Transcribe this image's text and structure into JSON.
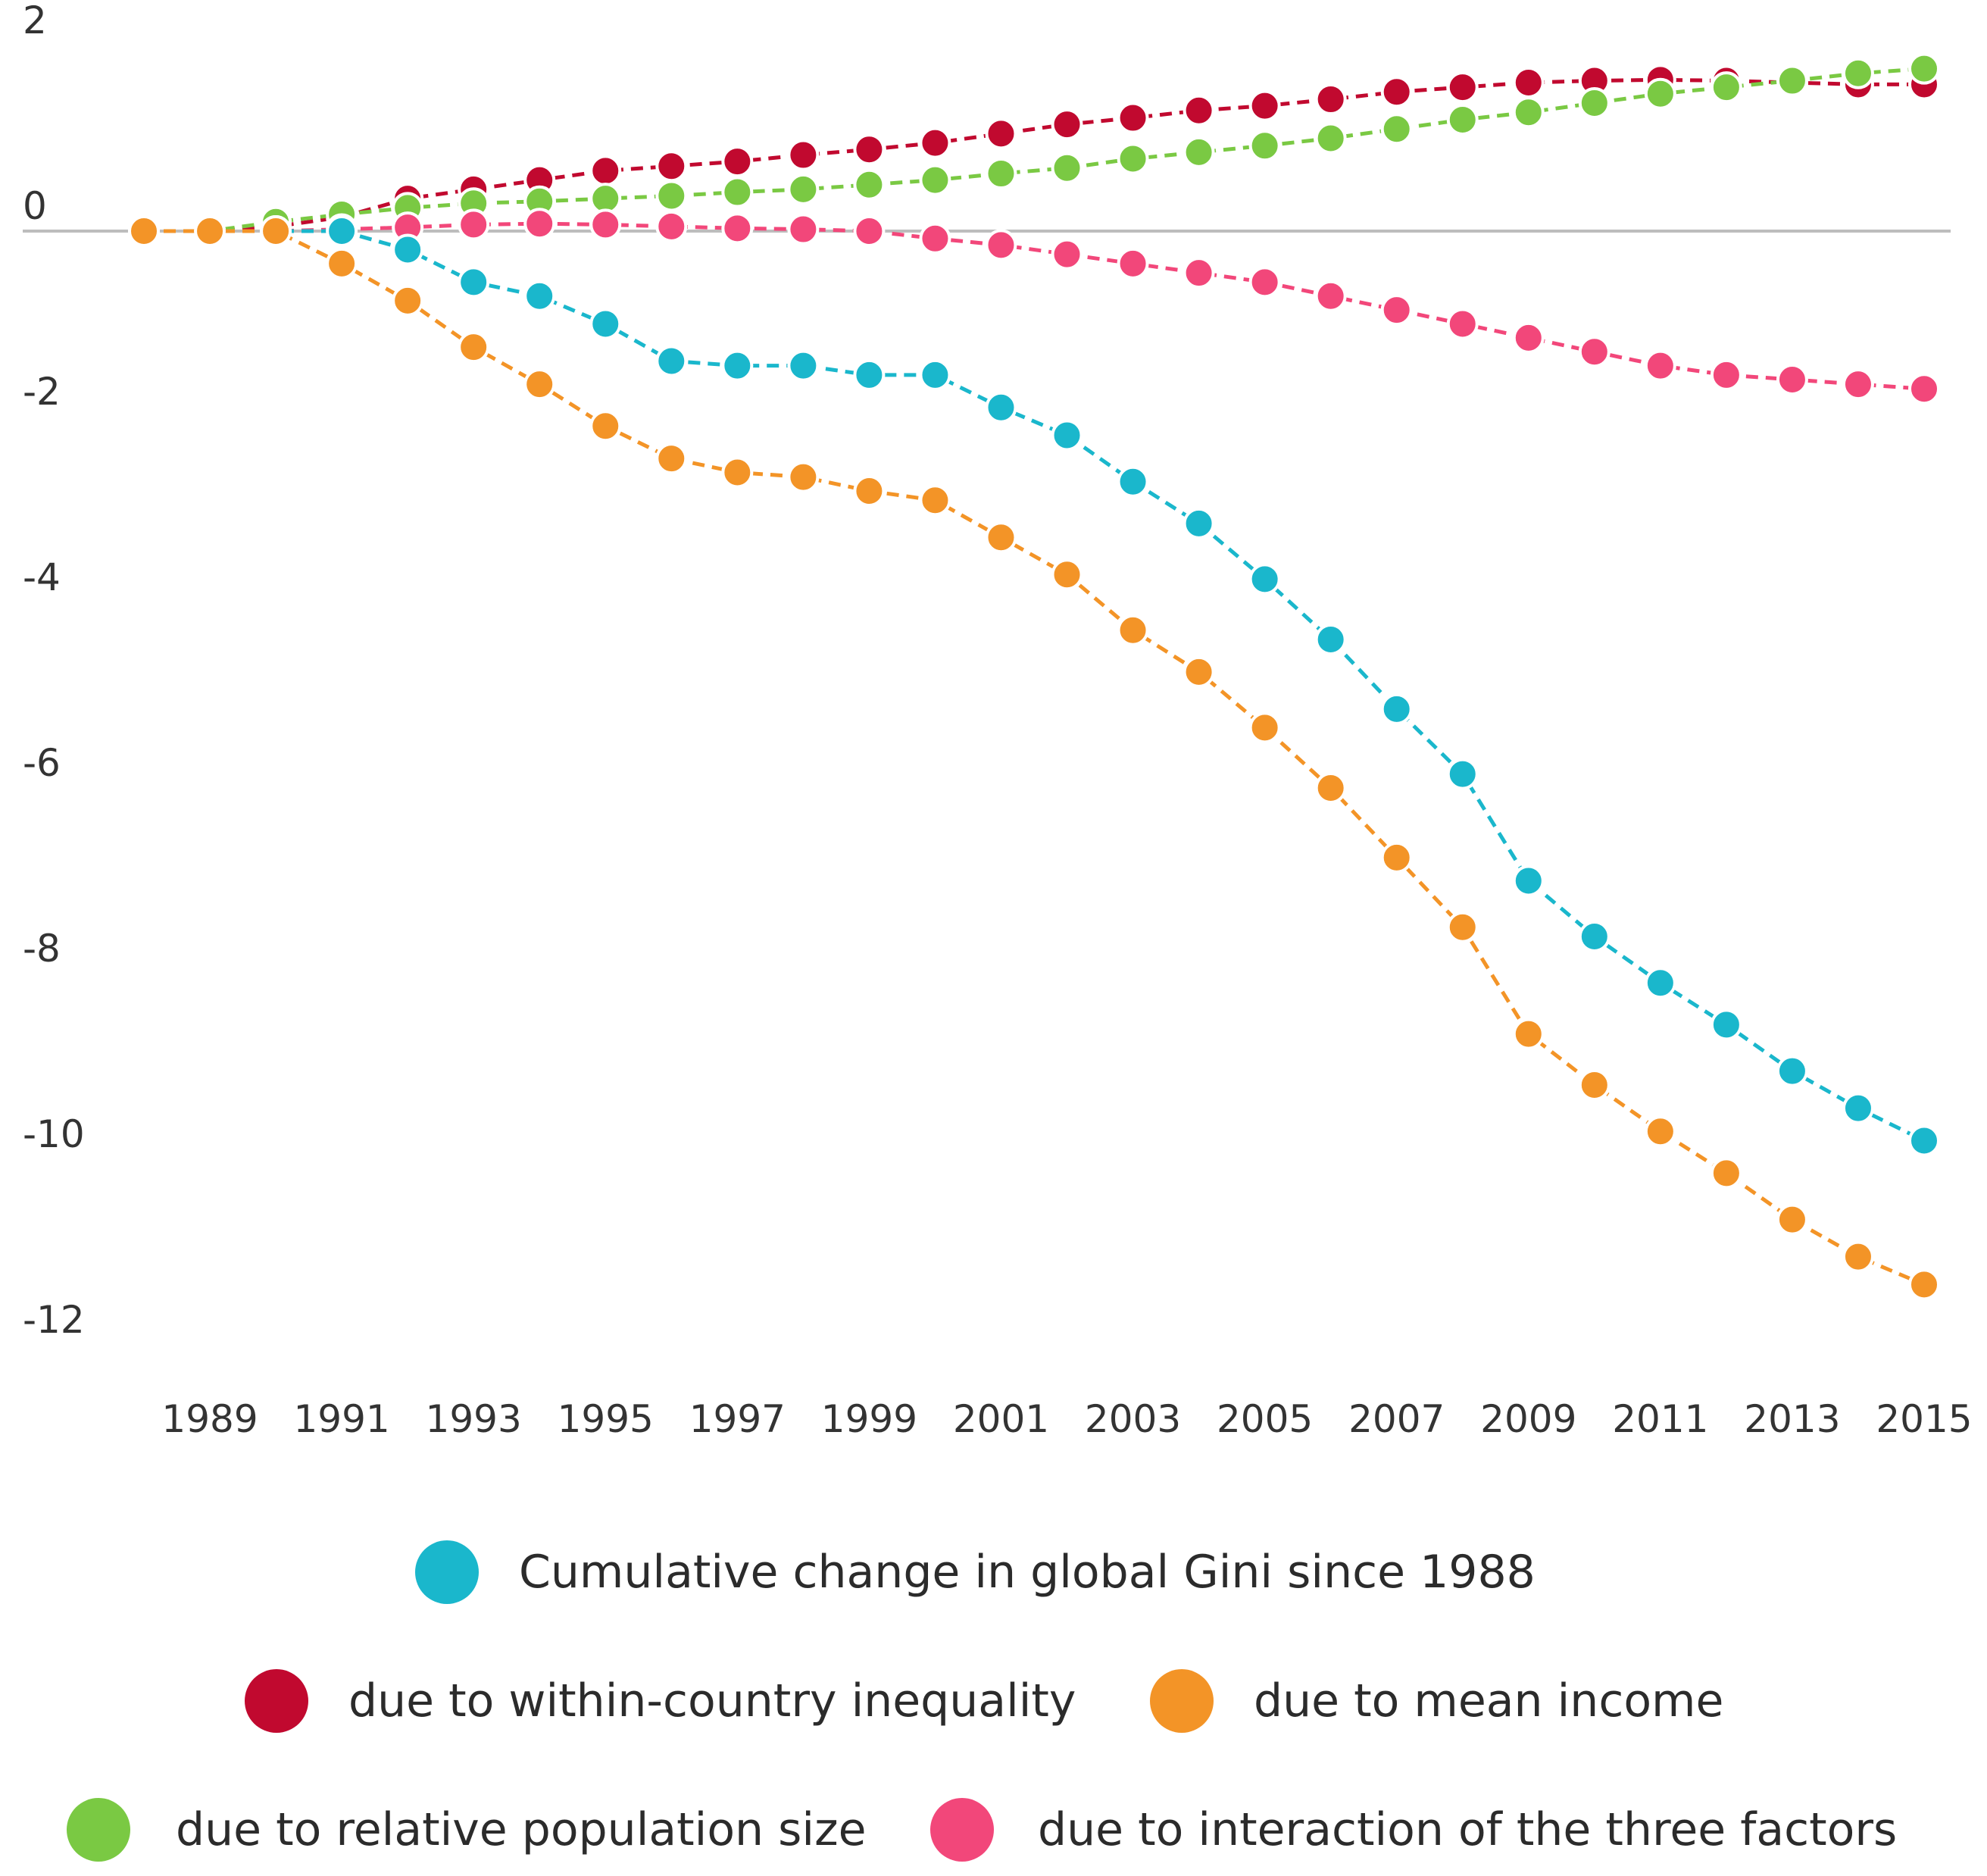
{
  "chart_data": {
    "type": "line",
    "title": "",
    "xlabel": "",
    "ylabel": "",
    "xlim": [
      1988,
      2015
    ],
    "ylim": [
      -12,
      2
    ],
    "yticks": [
      2,
      0,
      -2,
      -4,
      -6,
      -8,
      -10,
      -12
    ],
    "xticks": [
      1989,
      1991,
      1993,
      1995,
      1997,
      1999,
      2001,
      2003,
      2005,
      2007,
      2009,
      2011,
      2013,
      2015
    ],
    "x": [
      1988,
      1989,
      1990,
      1991,
      1992,
      1993,
      1994,
      1995,
      1996,
      1997,
      1998,
      1999,
      2000,
      2001,
      2002,
      2003,
      2004,
      2005,
      2006,
      2007,
      2008,
      2009,
      2010,
      2011,
      2012,
      2013,
      2014,
      2015
    ],
    "grid": false,
    "zero_line": true,
    "legend_position": "bottom",
    "series": [
      {
        "name": "due to within-country inequality",
        "color": "#c1092f",
        "values": [
          0,
          0,
          0.05,
          0.15,
          0.35,
          0.45,
          0.55,
          0.65,
          0.7,
          0.75,
          0.82,
          0.88,
          0.95,
          1.05,
          1.15,
          1.22,
          1.3,
          1.35,
          1.42,
          1.5,
          1.55,
          1.6,
          1.62,
          1.63,
          1.62,
          1.6,
          1.58,
          1.58
        ]
      },
      {
        "name": "due to relative population size",
        "color": "#7ac943",
        "values": [
          0,
          0,
          0.1,
          0.18,
          0.25,
          0.3,
          0.32,
          0.35,
          0.38,
          0.42,
          0.45,
          0.5,
          0.55,
          0.62,
          0.68,
          0.78,
          0.85,
          0.92,
          1.0,
          1.1,
          1.2,
          1.28,
          1.38,
          1.48,
          1.55,
          1.62,
          1.7,
          1.75
        ]
      },
      {
        "name": "due to interaction of the three factors",
        "color": "#f2477a",
        "values": [
          0,
          0,
          0,
          0.02,
          0.04,
          0.07,
          0.08,
          0.07,
          0.05,
          0.03,
          0.02,
          0,
          -0.08,
          -0.15,
          -0.25,
          -0.35,
          -0.45,
          -0.55,
          -0.7,
          -0.85,
          -1.0,
          -1.15,
          -1.3,
          -1.45,
          -1.55,
          -1.6,
          -1.65,
          -1.7
        ]
      },
      {
        "name": "Cumulative change in global Gini since 1988",
        "color": "#1ab7cc",
        "values": [
          0,
          0,
          0,
          0,
          -0.2,
          -0.55,
          -0.7,
          -1.0,
          -1.4,
          -1.45,
          -1.45,
          -1.55,
          -1.55,
          -1.9,
          -2.2,
          -2.7,
          -3.15,
          -3.75,
          -4.4,
          -5.15,
          -5.85,
          -7.0,
          -7.6,
          -8.1,
          -8.55,
          -9.05,
          -9.45,
          -9.8
        ]
      },
      {
        "name": "due to mean income",
        "color": "#f39427",
        "values": [
          0,
          0,
          0,
          -0.35,
          -0.75,
          -1.25,
          -1.65,
          -2.1,
          -2.45,
          -2.6,
          -2.65,
          -2.8,
          -2.9,
          -3.3,
          -3.7,
          -4.3,
          -4.75,
          -5.35,
          -6.0,
          -6.75,
          -7.5,
          -8.65,
          -9.2,
          -9.7,
          -10.15,
          -10.65,
          -11.05,
          -11.35
        ]
      }
    ]
  },
  "legend": {
    "rows": [
      [
        {
          "label": "Cumulative change in global Gini since 1988",
          "color": "#1ab7cc"
        }
      ],
      [
        {
          "label": "due to within-country inequality",
          "color": "#c1092f"
        },
        {
          "label": "due to mean income",
          "color": "#f39427"
        }
      ],
      [
        {
          "label": "due to relative population size",
          "color": "#7ac943"
        },
        {
          "label": "due to interaction of the three factors",
          "color": "#f2477a"
        }
      ]
    ]
  }
}
